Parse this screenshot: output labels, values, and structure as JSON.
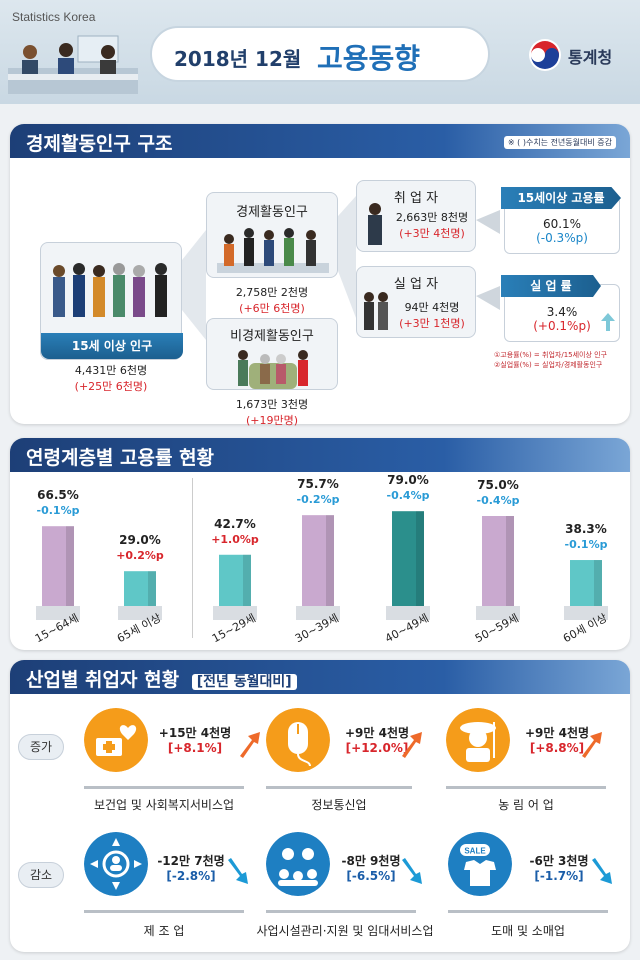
{
  "header": {
    "subtitle": "Statistics Korea",
    "title_main": "2018년 12월",
    "title_accent": "고용동향",
    "org": "통계청"
  },
  "structure": {
    "title": "경제활동인구 구조",
    "note": "※ ( )수치는 전년동월대비 증감",
    "pop15": {
      "label": "15세 이상 인구",
      "value": "4,431만 6천명",
      "change": "(+25만 6천명)"
    },
    "active": {
      "label": "경제활동인구",
      "value": "2,758만 2천명",
      "change": "(+6만 6천명)"
    },
    "inactive": {
      "label": "비경제활동인구",
      "value": "1,673만 3천명",
      "change": "(+19만명)"
    },
    "employed": {
      "label": "취 업 자",
      "value": "2,663만 8천명",
      "change": "(+3만 4천명)"
    },
    "unemployed": {
      "label": "실 업 자",
      "value": "94만 4천명",
      "change": "(+3만 1천명)"
    },
    "emp_rate": {
      "label": "15세이상 고용률",
      "value": "60.1%",
      "change": "(-0.3%p)"
    },
    "unemp_rate": {
      "label": "실 업 률",
      "value": "3.4%",
      "change": "(+0.1%p)"
    },
    "footnotes": [
      "①고용률(%) = 취업자/15세이상 인구",
      "②실업률(%) = 실업자/경제활동인구"
    ]
  },
  "age": {
    "title": "연령계층별 고용률 현황",
    "chart_data": {
      "type": "bar",
      "categories": [
        "15~64세",
        "65세 이상",
        "15~29세",
        "30~39세",
        "40~49세",
        "50~59세",
        "60세 이상"
      ],
      "values": [
        66.5,
        29.0,
        42.7,
        75.7,
        79.0,
        75.0,
        38.3
      ],
      "value_labels": [
        "66.5%",
        "29.0%",
        "42.7%",
        "75.7%",
        "79.0%",
        "75.0%",
        "38.3%"
      ],
      "changes": [
        "-0.1%p",
        "+0.2%p",
        "+1.0%p",
        "-0.2%p",
        "-0.4%p",
        "-0.4%p",
        "-0.1%p"
      ],
      "ylim": [
        0,
        100
      ],
      "colors": {
        "purple": "#c9a9cf",
        "teal": "#5fc7c7",
        "dark_teal": "#2b8f8c",
        "up": "#d8262c",
        "down": "#2a9bd6"
      }
    }
  },
  "industry": {
    "title": "산업별 취업자 현황",
    "subtitle": "[전년 동월대비]",
    "increase_label": "증가",
    "decrease_label": "감소",
    "increase": [
      {
        "name": "보건업 및 사회복지서비스업",
        "value": "+15만 4천명",
        "pct": "[+8.1%]",
        "icon": "health-care-icon"
      },
      {
        "name": "정보통신업",
        "value": "+9만 4천명",
        "pct": "[+12.0%]",
        "icon": "computer-mouse-icon"
      },
      {
        "name": "농 림 어 업",
        "value": "+9만 4천명",
        "pct": "[+8.8%]",
        "icon": "farmer-icon"
      }
    ],
    "decrease": [
      {
        "name": "제 조 업",
        "value": "-12만 7천명",
        "pct": "[-2.8%]",
        "icon": "manufacturing-icon"
      },
      {
        "name": "사업시설관리·지원 및 임대서비스업",
        "value": "-8만 9천명",
        "pct": "[-6.5%]",
        "icon": "facility-service-icon"
      },
      {
        "name": "도매 및 소매업",
        "value": "-6만 3천명",
        "pct": "[-1.7%]",
        "icon": "sale-shirt-icon"
      }
    ],
    "sale_text": "SALE"
  }
}
